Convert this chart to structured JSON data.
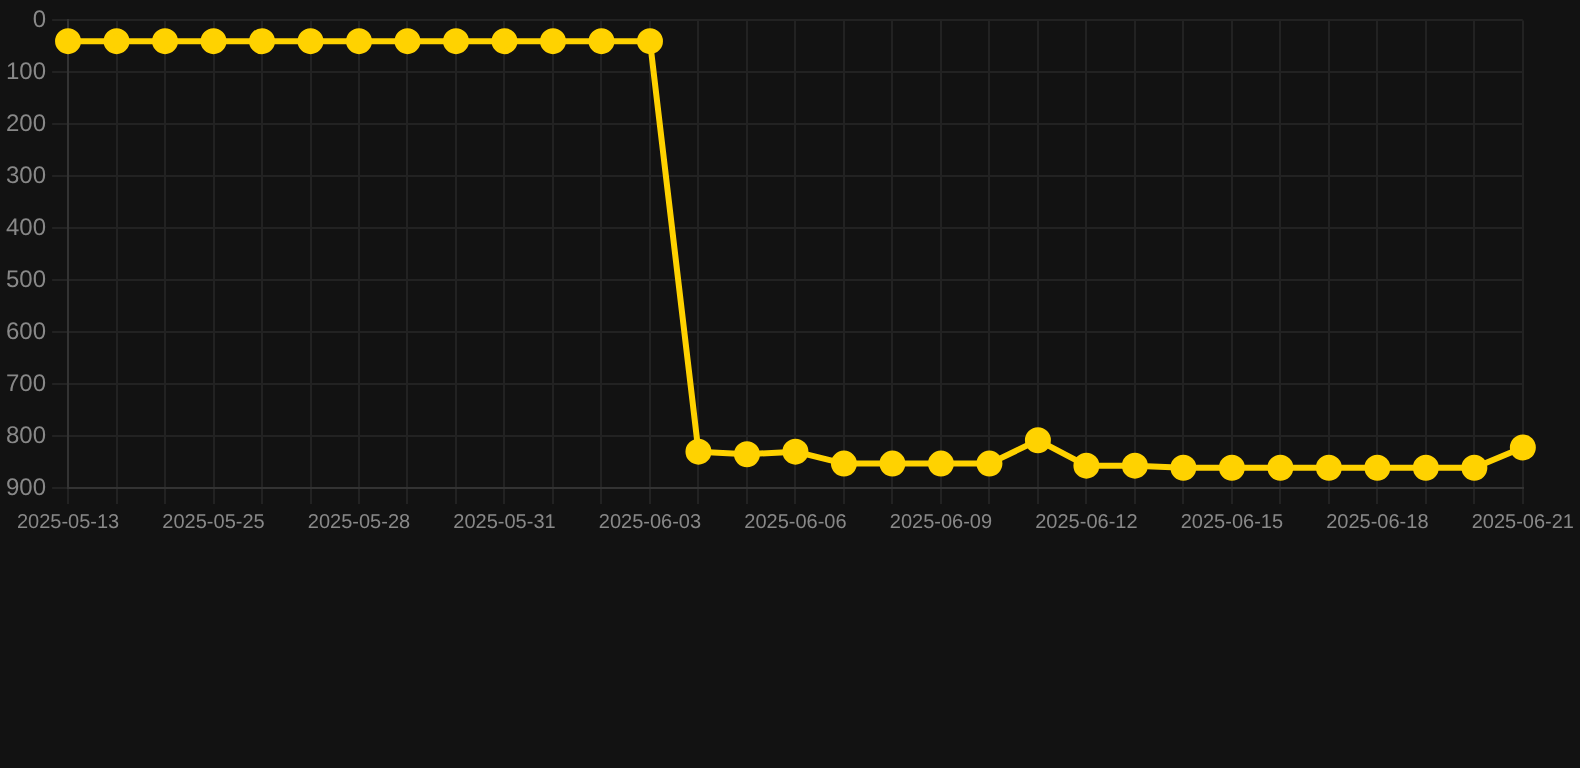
{
  "chart_data": {
    "type": "line",
    "categories": [
      "2025-05-13",
      null,
      null,
      "2025-05-25",
      null,
      null,
      "2025-05-28",
      null,
      null,
      "2025-05-31",
      null,
      null,
      "2025-06-03",
      null,
      null,
      "2025-06-06",
      null,
      null,
      "2025-06-09",
      null,
      null,
      "2025-06-12",
      null,
      null,
      "2025-06-15",
      null,
      null,
      "2025-06-18",
      null,
      null,
      "2025-06-21"
    ],
    "series": [
      {
        "color": "#ffd200",
        "values": [
          40,
          40,
          40,
          40,
          40,
          40,
          40,
          40,
          40,
          40,
          40,
          40,
          40,
          830,
          835,
          830,
          853,
          853,
          853,
          853,
          808,
          857,
          857,
          861,
          861,
          861,
          861,
          861,
          861,
          861,
          822
        ]
      }
    ],
    "ylim": [
      900,
      0
    ],
    "yticks": [
      0,
      100,
      200,
      300,
      400,
      500,
      600,
      700,
      800,
      900
    ],
    "grid": true,
    "marker": "circle",
    "line_style": "solid"
  }
}
